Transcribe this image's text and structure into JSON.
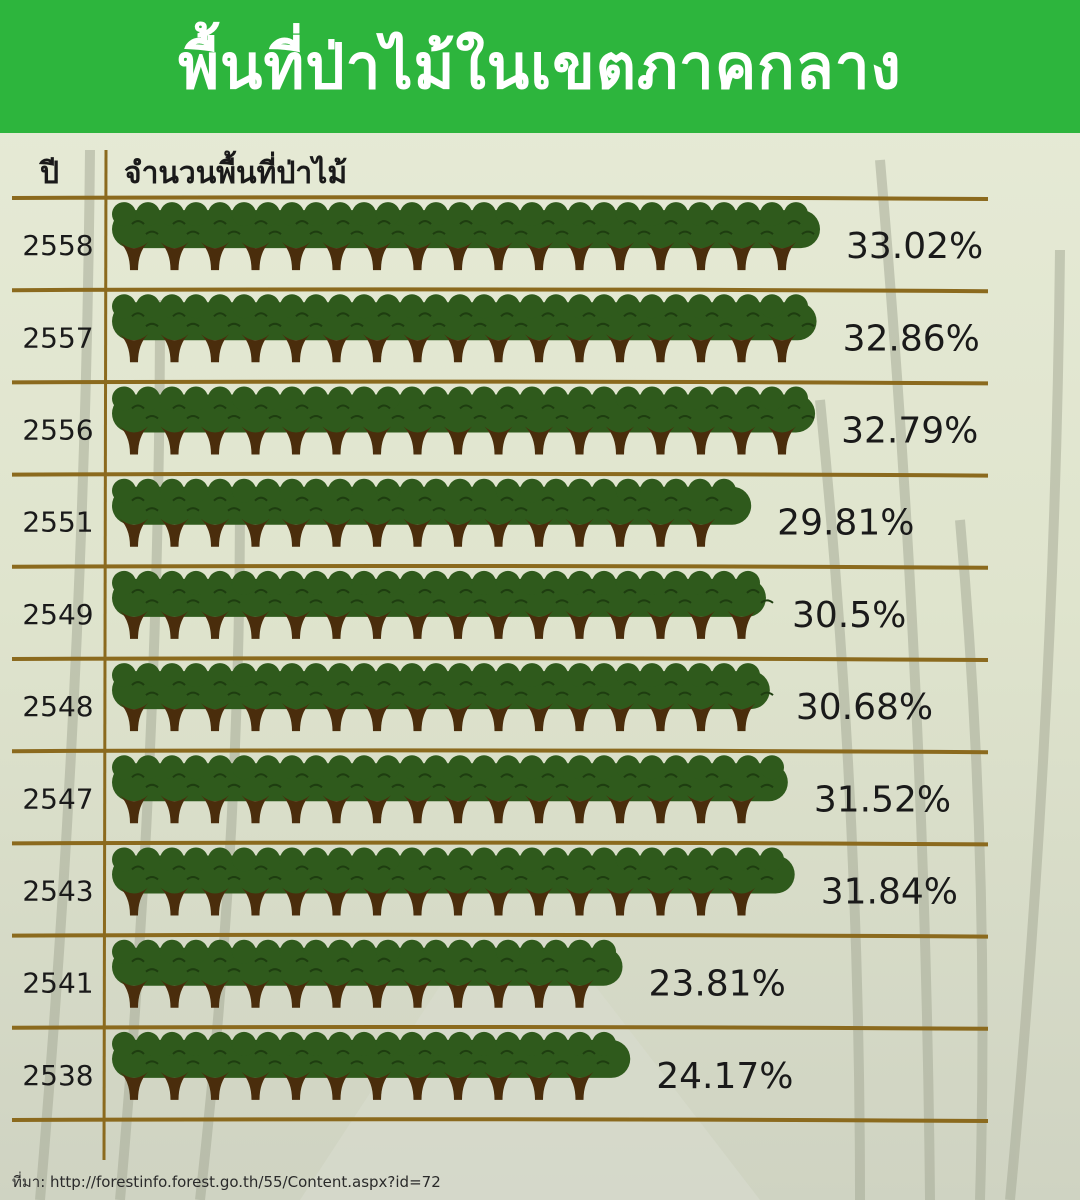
{
  "title": "พื้นที่ป่าไม้ในเขตภาคกลาง",
  "source": "ที่มา: http://forestinfo.forest.go.th/55/Content.aspx?id=72",
  "colors": {
    "header": "#2db53d",
    "divider": "#8b6a1e",
    "foliage": "#2f5a1c",
    "foliage_dark": "#1e3d10",
    "trunk": "#4a2d0c"
  },
  "chart_data": {
    "type": "bar",
    "orientation": "horizontal",
    "xlabel": "จำนวนพื้นที่ป่าไม้",
    "ylabel": "ปี",
    "categories": [
      "2558",
      "2557",
      "2556",
      "2551",
      "2549",
      "2548",
      "2547",
      "2543",
      "2541",
      "2538"
    ],
    "values": [
      33.02,
      32.86,
      32.79,
      29.81,
      30.5,
      30.68,
      31.52,
      31.84,
      23.81,
      24.17
    ],
    "value_labels": [
      "33.02%",
      "32.86%",
      "32.79%",
      "29.81%",
      "30.5%",
      "30.68%",
      "31.52%",
      "31.84%",
      "23.81%",
      "24.17%"
    ],
    "unit": "%"
  }
}
